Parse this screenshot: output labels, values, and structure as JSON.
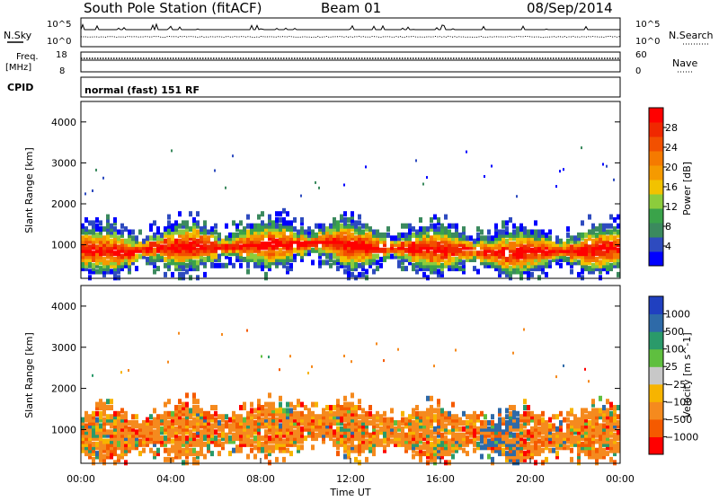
{
  "header": {
    "station": "South Pole Station (fitACF)",
    "beam": "Beam 01",
    "date": "08/Sep/2014"
  },
  "top_panel": {
    "left_label": "N.Sky",
    "right_label": "N.Search",
    "left_ticks": [
      "10^5",
      "10^0"
    ],
    "right_ticks": [
      "10^5",
      "10^0"
    ]
  },
  "freq_panel": {
    "left_label_1": "Freq.",
    "left_label_2": "[MHz]",
    "right_label": "Nave",
    "left_ticks": [
      "18",
      "8"
    ],
    "right_ticks": [
      "60",
      "0"
    ]
  },
  "cpid": {
    "label": "CPID",
    "mode": "normal (fast) 151 RF"
  },
  "colors": {
    "power_scale": [
      "#0000ff",
      "#2e4bbf",
      "#3b8a5e",
      "#3aa34a",
      "#8ccc3c",
      "#f2c200",
      "#f59a00",
      "#f57a00",
      "#f25000",
      "#f02800",
      "#ff0000"
    ],
    "velocity_scale": [
      "#ff0000",
      "#f55a00",
      "#f58a1e",
      "#f7b400",
      "#c8c8c8",
      "#5fbf3f",
      "#2a9a6a",
      "#2e6aa8",
      "#2040c0"
    ]
  },
  "chart_data": [
    {
      "type": "heatmap",
      "name": "power",
      "ylabel": "Slant Range [km]",
      "ylim": [
        180,
        4500
      ],
      "xlim": [
        0,
        24
      ],
      "yticks": [
        "1000",
        "2000",
        "3000",
        "4000"
      ],
      "colorbar": {
        "label": "Power [dB]",
        "ticks": [
          "4",
          "8",
          "12",
          "16",
          "20",
          "24",
          "28"
        ],
        "range": [
          0,
          32
        ]
      },
      "band_center_km": [
        [
          0,
          950
        ],
        [
          1,
          930
        ],
        [
          2,
          880
        ],
        [
          3,
          980
        ],
        [
          4,
          1000
        ],
        [
          5,
          1050
        ],
        [
          6,
          1000
        ],
        [
          7,
          1050
        ],
        [
          8,
          1060
        ],
        [
          9,
          1080
        ],
        [
          10,
          1100
        ],
        [
          11,
          1150
        ],
        [
          12,
          1050
        ],
        [
          13,
          1000
        ],
        [
          14,
          1000
        ],
        [
          15,
          950
        ],
        [
          16,
          950
        ],
        [
          17,
          950
        ],
        [
          18,
          900
        ],
        [
          19,
          850
        ],
        [
          20,
          900
        ],
        [
          21,
          920
        ],
        [
          22,
          900
        ],
        [
          23,
          950
        ],
        [
          24,
          1000
        ]
      ]
    },
    {
      "type": "heatmap",
      "name": "velocity",
      "ylabel": "Slant Range [km]",
      "xlabel": "Time UT",
      "ylim": [
        180,
        4500
      ],
      "xlim": [
        0,
        24
      ],
      "xticks": [
        "00:00",
        "04:00",
        "08:00",
        "12:00",
        "16:00",
        "20:00",
        "00:00"
      ],
      "yticks": [
        "1000",
        "2000",
        "3000",
        "4000"
      ],
      "colorbar": {
        "label": "Velocity [m s^-1]",
        "ticks": [
          "1000",
          "500",
          "100",
          "25",
          "−25",
          "−100",
          "−500",
          "−1000"
        ]
      }
    }
  ]
}
